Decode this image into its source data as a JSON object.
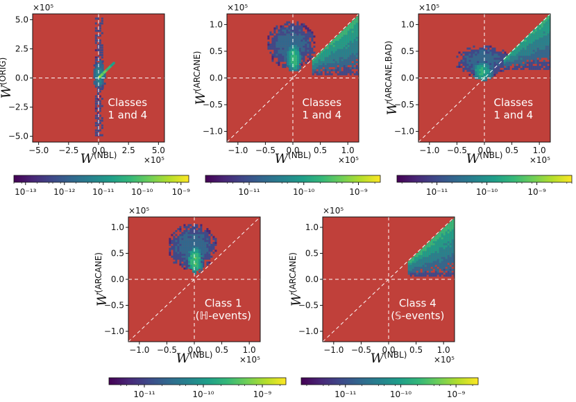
{
  "colors": {
    "background_fill": "#c0403a",
    "guide_line": "#ffffff",
    "viridis": [
      "#440154",
      "#482777",
      "#3e4989",
      "#31688e",
      "#26828e",
      "#1f9e89",
      "#35b779",
      "#6ece58",
      "#b5de2b",
      "#fde725"
    ]
  },
  "chart_data": [
    {
      "type": "heatmap",
      "panel": "top-left",
      "xlabel": "W",
      "xlabel_sup": "(NBL)",
      "ylabel": "W",
      "ylabel_sup": "(ORIG)",
      "x_multiplier": "×10⁵",
      "y_multiplier": "×10⁵",
      "xlim": [
        -5.5,
        5.5
      ],
      "ylim": [
        -5.5,
        5.5
      ],
      "xticks": [
        -5.0,
        -2.5,
        0.0,
        2.5,
        5.0
      ],
      "xtick_labels": [
        "−5.0",
        "−2.5",
        "0.0",
        "2.5",
        "5.0"
      ],
      "yticks": [
        -5.0,
        -2.5,
        0.0,
        2.5,
        5.0
      ],
      "ytick_labels": [
        "−5.0",
        "−2.5",
        "0.0",
        "2.5",
        "5.0"
      ],
      "diagonal_guide": false,
      "annotation": [
        "Classes",
        "1 and 4"
      ],
      "colorbar": {
        "scale": "log",
        "range_exp": [
          -13.3,
          -8.8
        ],
        "ticks_exp": [
          -13,
          -12,
          -11,
          -10,
          -9
        ],
        "tick_labels": [
          "10⁻¹³",
          "10⁻¹²",
          "10⁻¹¹",
          "10⁻¹⁰",
          "10⁻⁹"
        ]
      },
      "density_regions": [
        {
          "shape": "column",
          "x": [
            -0.3,
            0.3
          ],
          "y": [
            -5.0,
            5.2
          ],
          "level": 0.15
        },
        {
          "shape": "blob",
          "cx": 0.0,
          "cy": 0.2,
          "rx": 0.6,
          "ry": 1.3,
          "level": 0.45
        },
        {
          "shape": "streak",
          "from": [
            0.0,
            0.0
          ],
          "to": [
            1.2,
            1.2
          ],
          "level": 0.8
        }
      ]
    },
    {
      "type": "heatmap",
      "panel": "top-middle",
      "xlabel": "W",
      "xlabel_sup": "(NBL)",
      "ylabel": "W",
      "ylabel_sup": "(ARCANE)",
      "x_multiplier": "×10⁵",
      "y_multiplier": "×10⁵",
      "xlim": [
        -1.2,
        1.2
      ],
      "ylim": [
        -1.2,
        1.2
      ],
      "xticks": [
        -1.0,
        -0.5,
        0.0,
        0.5,
        1.0
      ],
      "xtick_labels": [
        "−1.0",
        "−0.5",
        "0.0",
        "0.5",
        "1.0"
      ],
      "yticks": [
        -1.0,
        -0.5,
        0.0,
        0.5,
        1.0
      ],
      "ytick_labels": [
        "−1.0",
        "−0.5",
        "0.0",
        "0.5",
        "1.0"
      ],
      "diagonal_guide": true,
      "annotation": [
        "Classes",
        "1 and 4"
      ],
      "colorbar": {
        "scale": "log",
        "range_exp": [
          -11.8,
          -8.6
        ],
        "ticks_exp": [
          -11,
          -10,
          -9
        ],
        "tick_labels": [
          "10⁻¹¹",
          "10⁻¹⁰",
          "10⁻⁹"
        ]
      },
      "density_regions": [
        {
          "shape": "blob",
          "cx": -0.05,
          "cy": 0.6,
          "rx": 0.45,
          "ry": 0.45,
          "level": 0.3
        },
        {
          "shape": "blob",
          "cx": 0.0,
          "cy": 0.35,
          "rx": 0.15,
          "ry": 0.3,
          "level": 0.65
        },
        {
          "shape": "wedge",
          "x_start": 0.35,
          "x_end": 1.2,
          "y_floor": 0.05,
          "level": 0.55
        }
      ]
    },
    {
      "type": "heatmap",
      "panel": "top-right",
      "xlabel": "W",
      "xlabel_sup": "(NBL)",
      "ylabel": "W",
      "ylabel_sup": "(ARCANE,BAD)",
      "x_multiplier": "×10⁵",
      "y_multiplier": "×10⁵",
      "xlim": [
        -1.2,
        1.2
      ],
      "ylim": [
        -1.2,
        1.2
      ],
      "xticks": [
        -1.0,
        -0.5,
        0.0,
        0.5,
        1.0
      ],
      "xtick_labels": [
        "−1.0",
        "−0.5",
        "0.0",
        "0.5",
        "1.0"
      ],
      "yticks": [
        -1.0,
        -0.5,
        0.0,
        0.5,
        1.0
      ],
      "ytick_labels": [
        "−1.0",
        "−0.5",
        "0.0",
        "0.5",
        "1.0"
      ],
      "diagonal_guide": true,
      "annotation": [
        "Classes",
        "1 and 4"
      ],
      "colorbar": {
        "scale": "log",
        "range_exp": [
          -11.8,
          -8.3
        ],
        "ticks_exp": [
          -11,
          -10,
          -9
        ],
        "tick_labels": [
          "10⁻¹¹",
          "10⁻¹⁰",
          "10⁻⁹"
        ]
      },
      "density_regions": [
        {
          "shape": "blob",
          "cx": -0.05,
          "cy": 0.3,
          "rx": 0.5,
          "ry": 0.3,
          "level": 0.3
        },
        {
          "shape": "blob",
          "cx": -0.05,
          "cy": 0.1,
          "rx": 0.2,
          "ry": 0.2,
          "level": 0.6
        },
        {
          "shape": "wedge",
          "x_start": 0.35,
          "x_end": 1.2,
          "y_floor": 0.15,
          "level": 0.5
        }
      ]
    },
    {
      "type": "heatmap",
      "panel": "bottom-left",
      "xlabel": "W",
      "xlabel_sup": "(NBL)",
      "ylabel": "W",
      "ylabel_sup": "(ARCANE)",
      "x_multiplier": "×10⁵",
      "y_multiplier": "×10⁵",
      "xlim": [
        -1.2,
        1.2
      ],
      "ylim": [
        -1.2,
        1.2
      ],
      "xticks": [
        -1.0,
        -0.5,
        0.0,
        0.5,
        1.0
      ],
      "xtick_labels": [
        "−1.0",
        "−0.5",
        "0.0",
        "0.5",
        "1.0"
      ],
      "yticks": [
        -1.0,
        -0.5,
        0.0,
        0.5,
        1.0
      ],
      "ytick_labels": [
        "−1.0",
        "−0.5",
        "0.0",
        "0.5",
        "1.0"
      ],
      "diagonal_guide": true,
      "annotation": [
        "Class 1",
        "(ℍ-events)"
      ],
      "colorbar": {
        "scale": "log",
        "range_exp": [
          -11.6,
          -8.6
        ],
        "ticks_exp": [
          -11,
          -10,
          -9
        ],
        "tick_labels": [
          "10⁻¹¹",
          "10⁻¹⁰",
          "10⁻⁹"
        ]
      },
      "density_regions": [
        {
          "shape": "blob",
          "cx": -0.05,
          "cy": 0.6,
          "rx": 0.45,
          "ry": 0.45,
          "level": 0.3
        },
        {
          "shape": "blob",
          "cx": 0.0,
          "cy": 0.35,
          "rx": 0.15,
          "ry": 0.3,
          "level": 0.7
        }
      ]
    },
    {
      "type": "heatmap",
      "panel": "bottom-right",
      "xlabel": "W",
      "xlabel_sup": "(NBL)",
      "ylabel": "W",
      "ylabel_sup": "(ARCANE)",
      "x_multiplier": "×10⁵",
      "y_multiplier": "×10⁵",
      "xlim": [
        -1.2,
        1.2
      ],
      "ylim": [
        -1.2,
        1.2
      ],
      "xticks": [
        -1.0,
        -0.5,
        0.0,
        0.5,
        1.0
      ],
      "xtick_labels": [
        "−1.0",
        "−0.5",
        "0.0",
        "0.5",
        "1.0"
      ],
      "yticks": [
        -1.0,
        -0.5,
        0.0,
        0.5,
        1.0
      ],
      "ytick_labels": [
        "−1.0",
        "−0.5",
        "0.0",
        "0.5",
        "1.0"
      ],
      "diagonal_guide": true,
      "annotation": [
        "Class 4",
        "(𝕊-events)"
      ],
      "colorbar": {
        "scale": "log",
        "range_exp": [
          -11.8,
          -8.6
        ],
        "ticks_exp": [
          -11,
          -10,
          -9
        ],
        "tick_labels": [
          "10⁻¹¹",
          "10⁻¹⁰",
          "10⁻⁹"
        ]
      },
      "density_regions": [
        {
          "shape": "wedge",
          "x_start": 0.35,
          "x_end": 1.2,
          "y_floor": 0.05,
          "level": 0.55
        }
      ]
    }
  ]
}
